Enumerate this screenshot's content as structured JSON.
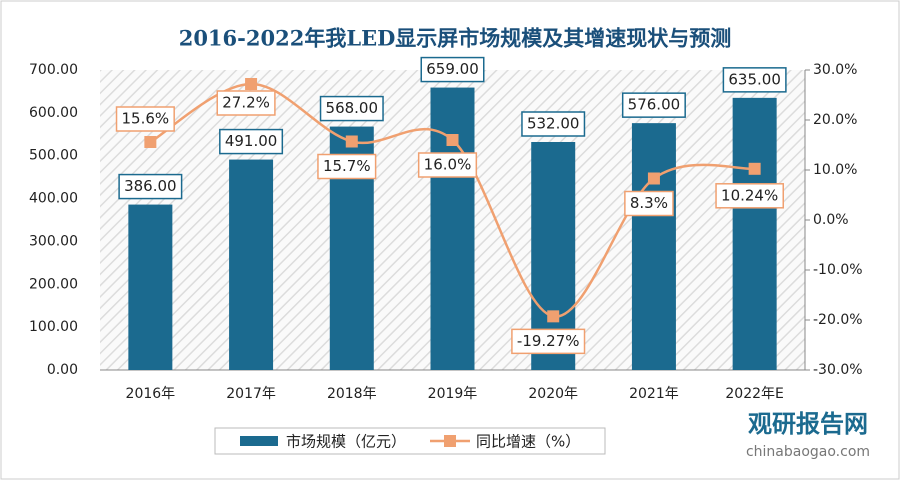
{
  "chart_data": {
    "type": "bar_line",
    "title": "2016-2022年我LED显示屏市场规模及其增速现状与预测",
    "categories": [
      "2016年",
      "2017年",
      "2018年",
      "2019年",
      "2020年",
      "2021年",
      "2022年E"
    ],
    "series": [
      {
        "name": "市场规模（亿元）",
        "color": "#1b6a8f",
        "type": "bar",
        "axis": "y",
        "values": [
          386,
          491,
          568,
          659,
          532,
          576,
          635
        ],
        "value_labels": [
          "386.00",
          "491.00",
          "568.00",
          "659.00",
          "532.00",
          "576.00",
          "635.00"
        ]
      },
      {
        "name": "同比增速（%）",
        "color": "#f0a070",
        "type": "line",
        "axis": "y2",
        "values": [
          15.6,
          27.2,
          15.7,
          16.0,
          -19.27,
          8.3,
          10.24
        ],
        "value_labels": [
          "15.6%",
          "27.2%",
          "15.7%",
          "16.0%",
          "-19.27%",
          "8.3%",
          "10.24%"
        ]
      }
    ],
    "ylim": [
      0,
      700
    ],
    "yticks": [
      {
        "value": 0,
        "label": "0.00"
      },
      {
        "value": 100,
        "label": "100.00"
      },
      {
        "value": 200,
        "label": "200.00"
      },
      {
        "value": 300,
        "label": "300.00"
      },
      {
        "value": 400,
        "label": "400.00"
      },
      {
        "value": 500,
        "label": "500.00"
      },
      {
        "value": 600,
        "label": "600.00"
      },
      {
        "value": 700,
        "label": "700.00"
      }
    ],
    "y2lim": [
      -30,
      30
    ],
    "y2ticks": [
      {
        "value": -30,
        "label": "-30.0%"
      },
      {
        "value": -20,
        "label": "-20.0%"
      },
      {
        "value": -10,
        "label": "-10.0%"
      },
      {
        "value": 0,
        "label": "0.0%"
      },
      {
        "value": 10,
        "label": "10.0%"
      },
      {
        "value": 20,
        "label": "20.0%"
      },
      {
        "value": 30,
        "label": "30.0%"
      }
    ],
    "legend": "bottom",
    "watermark": {
      "name": "观研报告网",
      "url": "chinabaogao.com"
    }
  }
}
